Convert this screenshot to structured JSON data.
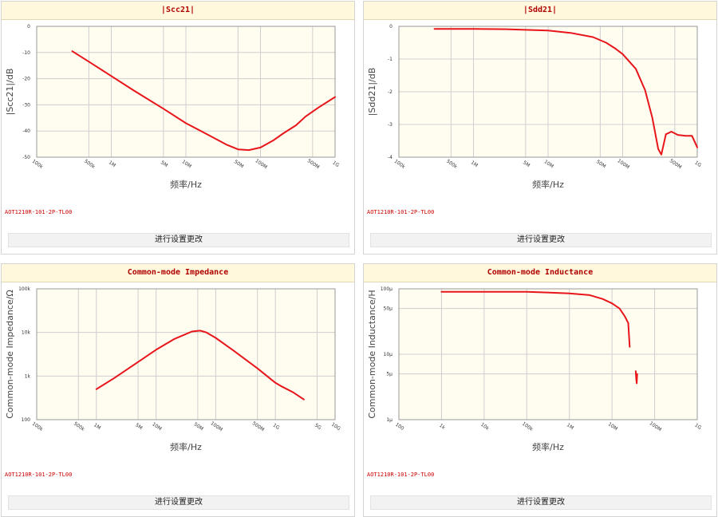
{
  "button_label": "进行设置更改",
  "colors": {
    "curve": "#e8151b",
    "plot_bg": "#fffcf0",
    "grid": "#cfcfcf",
    "title": "#b00000"
  },
  "chart_data": [
    {
      "type": "line",
      "title": "|Scc21|",
      "part_number": "AOT1210R-101-2P-TL00",
      "xlabel": "频率/Hz",
      "ylabel": "|Scc21|/dB",
      "x_scale": "log",
      "xlim": [
        100000,
        1000000000
      ],
      "ylim": [
        -50,
        0
      ],
      "x_ticks": [
        {
          "v": 100000,
          "label": "100k"
        },
        {
          "v": 500000,
          "label": "500k"
        },
        {
          "v": 1000000,
          "label": "1M"
        },
        {
          "v": 5000000,
          "label": "5M"
        },
        {
          "v": 10000000,
          "label": "10M"
        },
        {
          "v": 50000000,
          "label": "50M"
        },
        {
          "v": 100000000,
          "label": "100M"
        },
        {
          "v": 500000000,
          "label": "500M"
        },
        {
          "v": 1000000000,
          "label": "1G"
        }
      ],
      "y_ticks": [
        {
          "v": 0,
          "label": "0"
        },
        {
          "v": -10,
          "label": "-10"
        },
        {
          "v": -20,
          "label": "-20"
        },
        {
          "v": -30,
          "label": "-30"
        },
        {
          "v": -40,
          "label": "-40"
        },
        {
          "v": -50,
          "label": "-50"
        }
      ],
      "x": [
        300000,
        500000,
        1000000,
        2000000,
        5000000,
        10000000,
        20000000,
        35000000,
        50000000,
        70000000,
        100000000,
        150000000,
        200000000,
        300000000,
        400000000,
        600000000,
        1000000000
      ],
      "y": [
        -9.5,
        -13.5,
        -19,
        -24.5,
        -31.5,
        -37,
        -41.5,
        -45.2,
        -47,
        -47.3,
        -46.3,
        -43.5,
        -41,
        -37.8,
        -34.5,
        -31,
        -27
      ]
    },
    {
      "type": "line",
      "title": "|Sdd21|",
      "part_number": "AOT1210R-101-2P-TL00",
      "xlabel": "频率/Hz",
      "ylabel": "|Sdd21|/dB",
      "x_scale": "log",
      "xlim": [
        100000,
        1000000000
      ],
      "ylim": [
        -4,
        0
      ],
      "x_ticks": [
        {
          "v": 100000,
          "label": "100k"
        },
        {
          "v": 500000,
          "label": "500k"
        },
        {
          "v": 1000000,
          "label": "1M"
        },
        {
          "v": 5000000,
          "label": "5M"
        },
        {
          "v": 10000000,
          "label": "10M"
        },
        {
          "v": 50000000,
          "label": "50M"
        },
        {
          "v": 100000000,
          "label": "100M"
        },
        {
          "v": 500000000,
          "label": "500M"
        },
        {
          "v": 1000000000,
          "label": "1G"
        }
      ],
      "y_ticks": [
        {
          "v": 0,
          "label": "0"
        },
        {
          "v": -1,
          "label": "-1"
        },
        {
          "v": -2,
          "label": "-2"
        },
        {
          "v": -3,
          "label": "-3"
        },
        {
          "v": -4,
          "label": "-4"
        }
      ],
      "x": [
        300000,
        1000000,
        3000000,
        10000000,
        20000000,
        40000000,
        60000000,
        80000000,
        100000000,
        150000000,
        200000000,
        250000000,
        300000000,
        330000000,
        380000000,
        450000000,
        550000000,
        700000000,
        850000000,
        1000000000
      ],
      "y": [
        -0.08,
        -0.08,
        -0.09,
        -0.13,
        -0.2,
        -0.33,
        -0.5,
        -0.68,
        -0.85,
        -1.3,
        -1.95,
        -2.8,
        -3.75,
        -3.92,
        -3.3,
        -3.22,
        -3.32,
        -3.35,
        -3.35,
        -3.7
      ]
    },
    {
      "type": "line",
      "title": "Common-mode Impedance",
      "part_number": "AOT1210R-101-2P-TL00",
      "xlabel": "频率/Hz",
      "ylabel": "Common-mode Impedance/Ω",
      "x_scale": "log",
      "y_scale": "log",
      "xlim": [
        100000,
        10000000000
      ],
      "ylim": [
        100,
        100000
      ],
      "x_ticks": [
        {
          "v": 100000,
          "label": "100k"
        },
        {
          "v": 500000,
          "label": "500k"
        },
        {
          "v": 1000000,
          "label": "1M"
        },
        {
          "v": 5000000,
          "label": "5M"
        },
        {
          "v": 10000000,
          "label": "10M"
        },
        {
          "v": 50000000,
          "label": "50M"
        },
        {
          "v": 100000000,
          "label": "100M"
        },
        {
          "v": 500000000,
          "label": "500M"
        },
        {
          "v": 1000000000,
          "label": "1G"
        },
        {
          "v": 5000000000,
          "label": "5G"
        },
        {
          "v": 10000000000,
          "label": "10G"
        }
      ],
      "y_ticks": [
        {
          "v": 100,
          "label": "100"
        },
        {
          "v": 1000,
          "label": "1k"
        },
        {
          "v": 10000,
          "label": "10k"
        },
        {
          "v": 100000,
          "label": "100k"
        }
      ],
      "x": [
        1000000,
        2000000,
        5000000,
        10000000,
        20000000,
        40000000,
        55000000,
        70000000,
        100000000,
        200000000,
        500000000,
        1000000000,
        1300000000,
        2000000000,
        3000000000
      ],
      "y": [
        500,
        900,
        2100,
        4000,
        7000,
        10500,
        11000,
        10000,
        7500,
        3800,
        1500,
        700,
        570,
        420,
        290
      ]
    },
    {
      "type": "line",
      "title": "Common-mode Inductance",
      "part_number": "AOT1210R-101-2P-TL00",
      "xlabel": "频率/Hz",
      "ylabel": "Common-mode Inductance/H",
      "x_scale": "log",
      "y_scale": "log",
      "xlim": [
        100,
        1000000000
      ],
      "ylim": [
        1e-06,
        0.0001
      ],
      "x_ticks": [
        {
          "v": 100,
          "label": "100"
        },
        {
          "v": 1000,
          "label": "1k"
        },
        {
          "v": 10000,
          "label": "10k"
        },
        {
          "v": 100000,
          "label": "100k"
        },
        {
          "v": 1000000,
          "label": "1M"
        },
        {
          "v": 10000000,
          "label": "10M"
        },
        {
          "v": 100000000,
          "label": "100M"
        },
        {
          "v": 1000000000,
          "label": "1G"
        }
      ],
      "y_ticks": [
        {
          "v": 1e-06,
          "label": "1μ"
        },
        {
          "v": 5e-06,
          "label": "5μ"
        },
        {
          "v": 1e-05,
          "label": "10μ"
        },
        {
          "v": 5e-05,
          "label": "50μ"
        },
        {
          "v": 0.0001,
          "label": "100μ"
        }
      ],
      "x": [
        1000,
        10000,
        100000,
        300000,
        1000000,
        3000000,
        6000000,
        10000000,
        15000000,
        20000000,
        24000000,
        26000000
      ],
      "y": [
        9e-05,
        9e-05,
        9e-05,
        8.8e-05,
        8.5e-05,
        8e-05,
        7e-05,
        6e-05,
        5e-05,
        3.8e-05,
        3e-05,
        1.3e-05
      ],
      "x2": [
        36000000,
        37000000,
        38000000,
        39000000
      ],
      "y2": [
        5.5e-06,
        4.2e-06,
        3.6e-06,
        5e-06
      ]
    }
  ]
}
